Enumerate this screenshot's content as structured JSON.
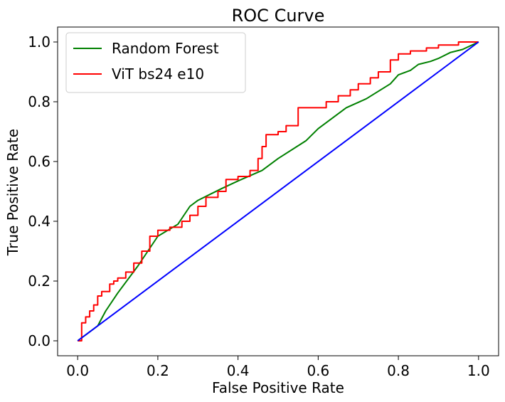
{
  "chart_data": {
    "type": "line",
    "title": "ROC Curve",
    "xlabel": "False Positive Rate",
    "ylabel": "True Positive Rate",
    "xlim": [
      -0.05,
      1.05
    ],
    "ylim": [
      -0.05,
      1.05
    ],
    "xticks": [
      "0.0",
      "0.2",
      "0.4",
      "0.6",
      "0.8",
      "1.0"
    ],
    "yticks": [
      "0.0",
      "0.2",
      "0.4",
      "0.6",
      "0.8",
      "1.0"
    ],
    "grid": false,
    "legend_position": "upper-left",
    "series": [
      {
        "name": "Random Forest",
        "color": "#008000",
        "x": [
          0.0,
          0.03,
          0.05,
          0.07,
          0.1,
          0.15,
          0.2,
          0.25,
          0.28,
          0.3,
          0.33,
          0.36,
          0.4,
          0.46,
          0.5,
          0.57,
          0.6,
          0.67,
          0.72,
          0.75,
          0.78,
          0.8,
          0.83,
          0.85,
          0.88,
          0.9,
          0.93,
          0.96,
          1.0
        ],
        "y": [
          0.0,
          0.03,
          0.05,
          0.1,
          0.16,
          0.25,
          0.35,
          0.39,
          0.45,
          0.47,
          0.49,
          0.51,
          0.535,
          0.57,
          0.61,
          0.67,
          0.71,
          0.78,
          0.81,
          0.835,
          0.86,
          0.89,
          0.905,
          0.925,
          0.935,
          0.945,
          0.965,
          0.975,
          1.0
        ]
      },
      {
        "name": "ViT bs24 e10",
        "color": "#ff0000",
        "steps": true,
        "x": [
          0.0,
          0.01,
          0.02,
          0.03,
          0.04,
          0.05,
          0.06,
          0.08,
          0.09,
          0.1,
          0.12,
          0.14,
          0.16,
          0.18,
          0.2,
          0.23,
          0.26,
          0.28,
          0.3,
          0.32,
          0.35,
          0.37,
          0.4,
          0.43,
          0.45,
          0.46,
          0.47,
          0.5,
          0.52,
          0.55,
          0.58,
          0.62,
          0.65,
          0.68,
          0.7,
          0.73,
          0.75,
          0.78,
          0.8,
          0.83,
          0.87,
          0.9,
          0.92,
          0.95,
          0.97,
          1.0
        ],
        "y": [
          0.0,
          0.06,
          0.08,
          0.1,
          0.12,
          0.15,
          0.165,
          0.19,
          0.2,
          0.21,
          0.23,
          0.26,
          0.3,
          0.35,
          0.37,
          0.38,
          0.4,
          0.42,
          0.45,
          0.48,
          0.5,
          0.54,
          0.55,
          0.57,
          0.61,
          0.65,
          0.69,
          0.7,
          0.72,
          0.78,
          0.78,
          0.8,
          0.82,
          0.84,
          0.86,
          0.88,
          0.9,
          0.94,
          0.96,
          0.97,
          0.98,
          0.99,
          0.99,
          1.0,
          1.0,
          1.0
        ]
      },
      {
        "name": "",
        "color": "#0000ff",
        "x": [
          0.0,
          1.0
        ],
        "y": [
          0.0,
          1.0
        ]
      }
    ]
  }
}
